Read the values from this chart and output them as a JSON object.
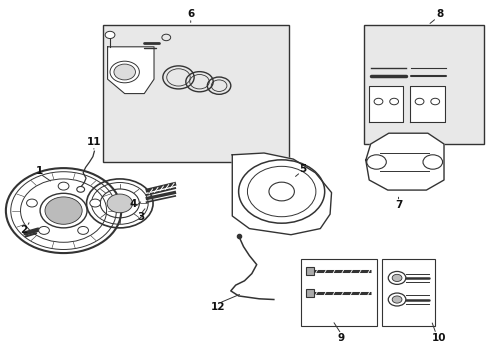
{
  "bg_color": "#ffffff",
  "line_color": "#333333",
  "box_bg": "#e8e8e8"
}
